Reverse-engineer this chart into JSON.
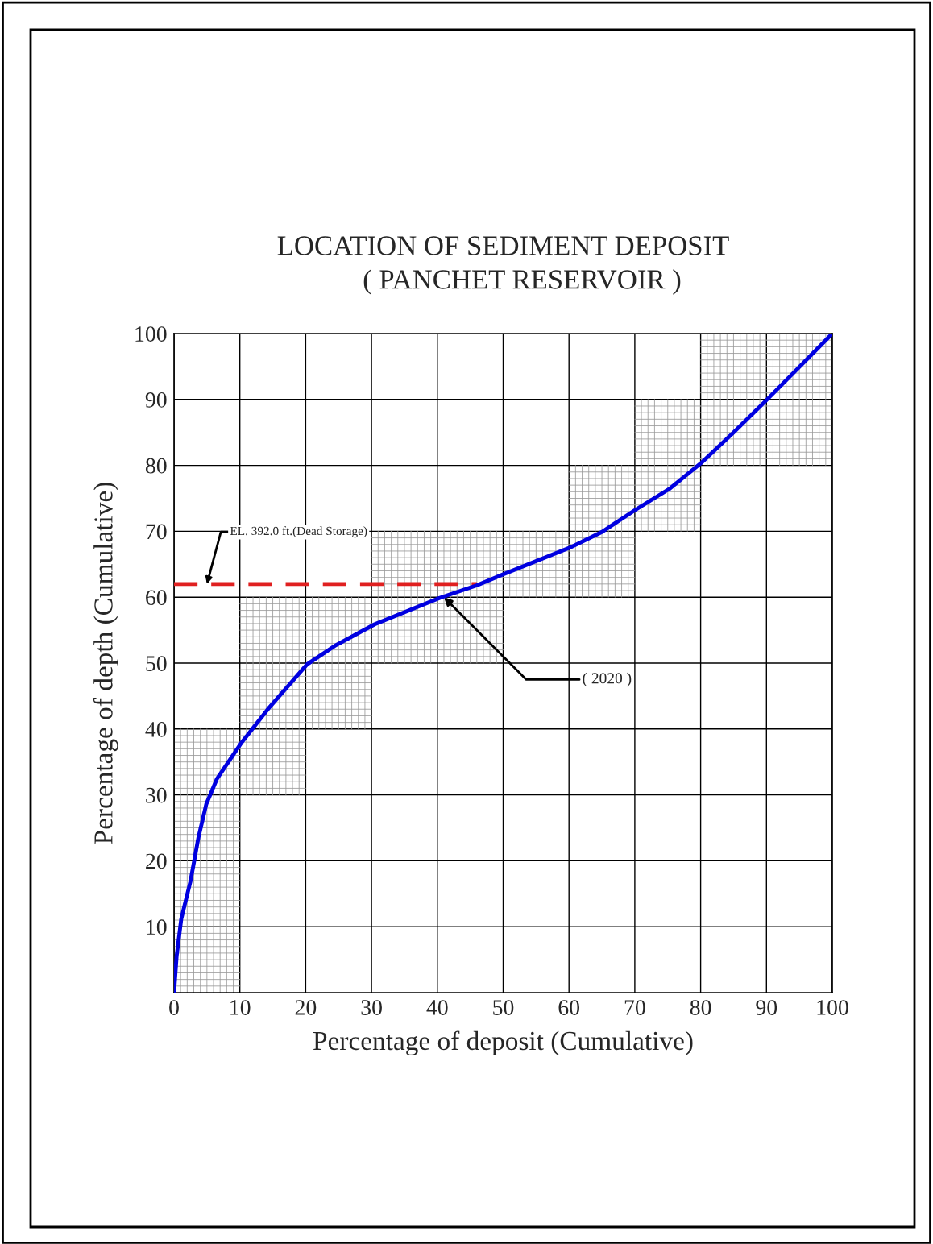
{
  "chart_data": {
    "type": "line",
    "title": "LOCATION OF SEDIMENT DEPOSIT",
    "subtitle": "( PANCHET RESERVOIR )",
    "xlabel": "Percentage of deposit (Cumulative)",
    "ylabel": "Percentage of depth (Cumulative)",
    "series": [
      {
        "color": "#0000e0",
        "line_style": "solid",
        "x": [
          0,
          0.4,
          1.1,
          2.5,
          3.7,
          4.9,
          6.5,
          10.3,
          14.5,
          20.2,
          24.4,
          30.5,
          40.4,
          46,
          49.8,
          60.1,
          65,
          70,
          75.2,
          80,
          85,
          90,
          100
        ],
        "values": [
          0,
          5.6,
          11.2,
          16.9,
          23.5,
          28.6,
          32.4,
          38,
          43.3,
          49.8,
          52.6,
          55.9,
          59.9,
          61.8,
          63.4,
          67.5,
          69.9,
          73.2,
          76.4,
          80.3,
          85,
          89.9,
          100
        ]
      },
      {
        "color": "#e02020",
        "line_style": "dashed",
        "x": [
          0,
          46
        ],
        "values": [
          62,
          62
        ]
      }
    ],
    "annotations": [
      {
        "text": "EL. 392.0 ft.(Dead Storage)",
        "x": 5,
        "y": 62
      },
      {
        "text": "( 2020 )",
        "x": 41,
        "y": 60
      }
    ],
    "xlim": [
      0,
      100
    ],
    "ylim": [
      0,
      100
    ],
    "xticks": [
      0,
      10,
      20,
      30,
      40,
      50,
      60,
      70,
      80,
      90,
      100
    ],
    "yticks": [
      10,
      20,
      30,
      40,
      50,
      60,
      70,
      80,
      90,
      100
    ],
    "grid": true
  }
}
